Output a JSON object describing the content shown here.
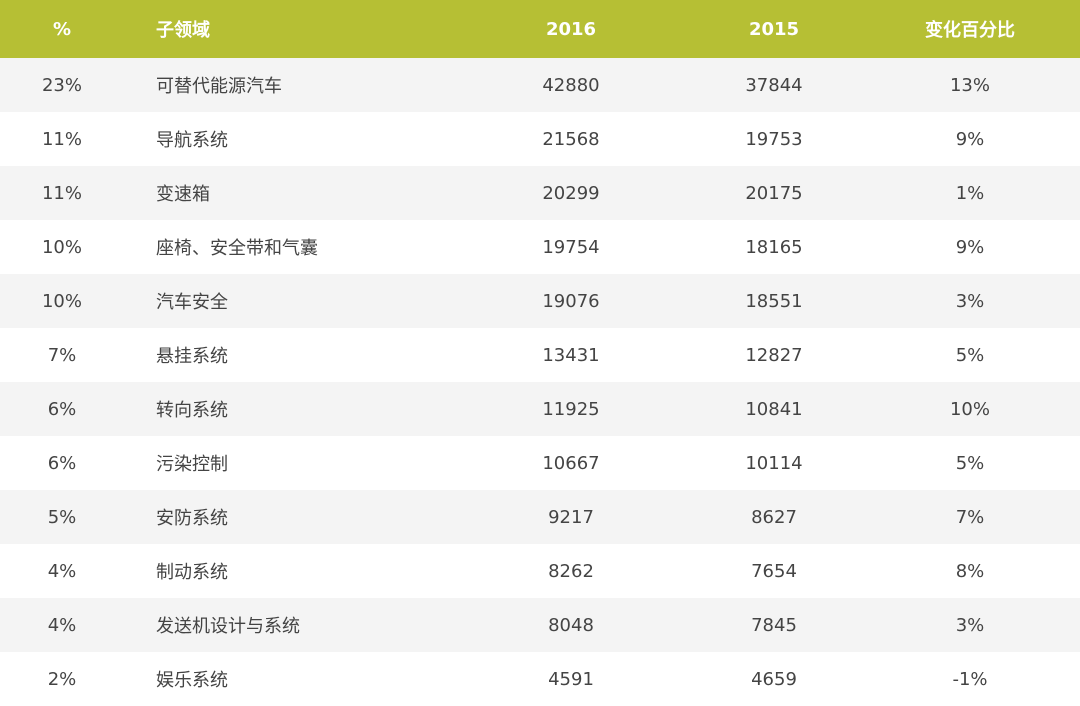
{
  "chart_data": {
    "type": "table",
    "columns": [
      "%",
      "子领域",
      "2016",
      "2015",
      "变化百分比"
    ],
    "rows": [
      {
        "pct": "23%",
        "name": "可替代能源汽车",
        "y2016": "42880",
        "y2015": "37844",
        "change": "13%"
      },
      {
        "pct": "11%",
        "name": "导航系统",
        "y2016": "21568",
        "y2015": "19753",
        "change": "9%"
      },
      {
        "pct": "11%",
        "name": "变速箱",
        "y2016": "20299",
        "y2015": "20175",
        "change": "1%"
      },
      {
        "pct": "10%",
        "name": "座椅、安全带和气囊",
        "y2016": "19754",
        "y2015": "18165",
        "change": "9%"
      },
      {
        "pct": "10%",
        "name": "汽车安全",
        "y2016": "19076",
        "y2015": "18551",
        "change": "3%"
      },
      {
        "pct": "7%",
        "name": "悬挂系统",
        "y2016": "13431",
        "y2015": "12827",
        "change": "5%"
      },
      {
        "pct": "6%",
        "name": "转向系统",
        "y2016": "11925",
        "y2015": "10841",
        "change": "10%"
      },
      {
        "pct": "6%",
        "name": "污染控制",
        "y2016": "10667",
        "y2015": "10114",
        "change": "5%"
      },
      {
        "pct": "5%",
        "name": "安防系统",
        "y2016": "9217",
        "y2015": "8627",
        "change": "7%"
      },
      {
        "pct": "4%",
        "name": "制动系统",
        "y2016": "8262",
        "y2015": "7654",
        "change": "8%"
      },
      {
        "pct": "4%",
        "name": "发送机设计与系统",
        "y2016": "8048",
        "y2015": "7845",
        "change": "3%"
      },
      {
        "pct": "2%",
        "name": "娱乐系统",
        "y2016": "4591",
        "y2015": "4659",
        "change": "-1%"
      }
    ]
  },
  "colors": {
    "header_bg": "#b6bf34",
    "header_text": "#ffffff",
    "stripe_bg": "#f4f4f4",
    "text": "#444444"
  }
}
